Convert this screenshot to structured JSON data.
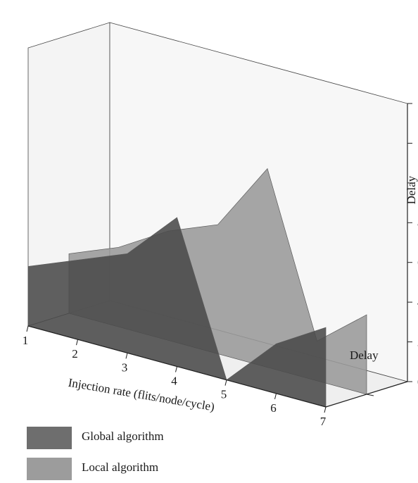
{
  "chart_data": {
    "type": "area",
    "view": "3d",
    "x": [
      1,
      2,
      3,
      4,
      5,
      6,
      7
    ],
    "xlabel": "Injection rate (flits/node/cycle)",
    "ylabel": "Delay",
    "depth_label": "Delay",
    "ylim": [
      0,
      140
    ],
    "y_ticks": [
      0,
      20,
      40,
      60,
      80,
      100,
      120,
      140
    ],
    "series": [
      {
        "name": "Global algorithm",
        "color": "#4a4a4a",
        "values": [
          30,
          40,
          50,
          75,
          0,
          25,
          40
        ]
      },
      {
        "name": "Local algorithm",
        "color": "#9a9a9a",
        "values": [
          30,
          40,
          55,
          65,
          100,
          20,
          40
        ]
      }
    ],
    "grid": false,
    "legend_position": "bottom-left"
  },
  "legend": {
    "items": [
      {
        "label": "Global algorithm",
        "color": "#6e6e6e"
      },
      {
        "label": "Local algorithm",
        "color": "#9c9c9c"
      }
    ]
  }
}
